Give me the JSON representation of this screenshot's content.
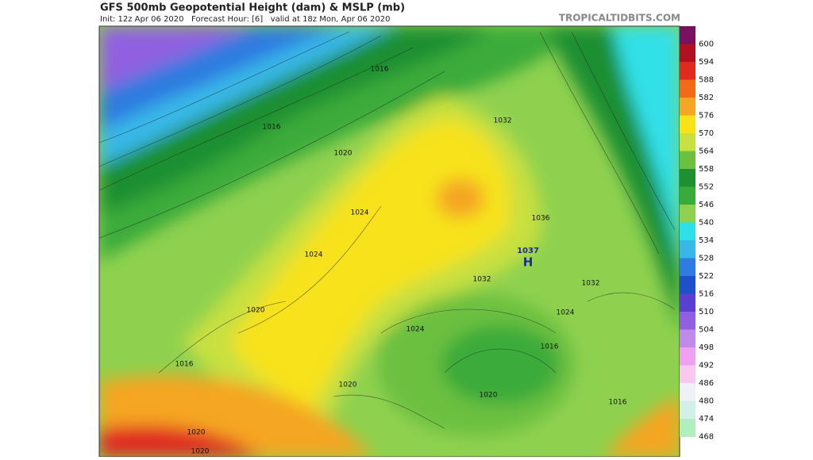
{
  "header": {
    "title": "GFS 500mb Geopotential Height (dam) & MSLP (mb)",
    "subtitle": "Init: 12z Apr 06 2020   Forecast Hour: [6]   valid at 18z Mon, Apr 06 2020",
    "site": "TROPICALTIDBITS.COM"
  },
  "colorbar": {
    "ticks": [
      600,
      594,
      588,
      582,
      576,
      570,
      564,
      558,
      552,
      546,
      540,
      534,
      528,
      522,
      516,
      510,
      504,
      498,
      492,
      486,
      480,
      474,
      468
    ],
    "colors": [
      "#7a1060",
      "#b01020",
      "#e02a20",
      "#f06a18",
      "#f5a623",
      "#f7e21c",
      "#c8e040",
      "#6cc040",
      "#1f8f30",
      "#3aab3a",
      "#8fd14f",
      "#30e0e8",
      "#38b8e8",
      "#2f7be0",
      "#2050c8",
      "#5a40d0",
      "#9060e0",
      "#c08ae8",
      "#f0a0f0",
      "#f8c8f0",
      "#f0f0f8",
      "#d0f0e8",
      "#b0f0c0"
    ]
  },
  "map": {
    "labels": [
      "1016",
      "1016",
      "1020",
      "1024",
      "1024",
      "1020",
      "1016",
      "1032",
      "1036",
      "1037",
      "H",
      "1032",
      "1032",
      "1024",
      "1024",
      "1016",
      "1020",
      "1020",
      "1016",
      "1020",
      "1020"
    ]
  }
}
